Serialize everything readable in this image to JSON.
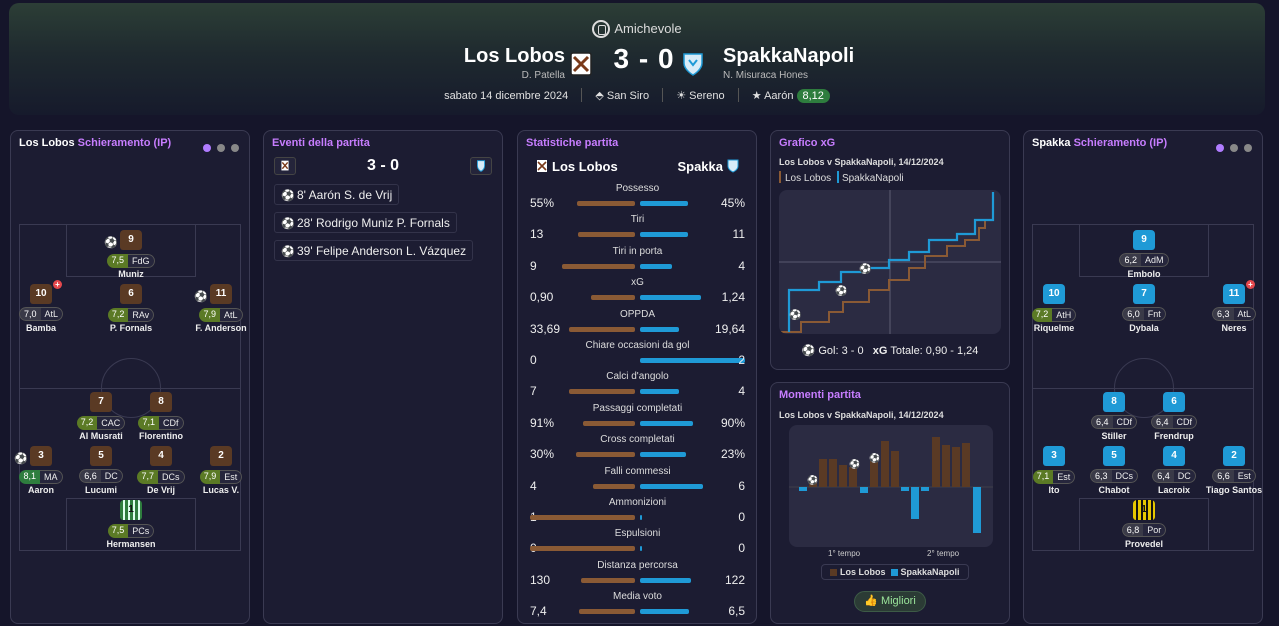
{
  "header": {
    "competition": "Amichevole",
    "home_team": "Los Lobos",
    "home_manager": "D. Patella",
    "away_team": "SpakkaNapoli",
    "away_manager": "N. Misuraca Hones",
    "score": "3 - 0",
    "date": "sabato 14 dicembre 2024",
    "stadium": "San Siro",
    "weather": "Sereno",
    "mvp_name": "Aarón",
    "mvp_rating": "8,12"
  },
  "home_lineup": {
    "title_team": "Los Lobos",
    "title_suffix": "Schieramento (IP)",
    "players": [
      {
        "num": "9",
        "rating": "7,5",
        "pos": "FdG",
        "name": "Muniz",
        "event": "⚽"
      },
      {
        "num": "10",
        "rating": "7,0",
        "pos": "AtL",
        "name": "Bamba"
      },
      {
        "num": "6",
        "rating": "7,2",
        "pos": "RAv",
        "name": "P. Fornals"
      },
      {
        "num": "11",
        "rating": "7,9",
        "pos": "AtL",
        "name": "F. Anderson",
        "event": "⚽"
      },
      {
        "num": "7",
        "rating": "7,2",
        "pos": "CAC",
        "name": "Al Musrati"
      },
      {
        "num": "8",
        "rating": "7,1",
        "pos": "CDf",
        "name": "Florentino"
      },
      {
        "num": "3",
        "rating": "8,1",
        "pos": "MA",
        "name": "Aaron",
        "event": "⚽"
      },
      {
        "num": "5",
        "rating": "6,6",
        "pos": "DC",
        "name": "Lucumi"
      },
      {
        "num": "4",
        "rating": "7,7",
        "pos": "DCs",
        "name": "De Vrij"
      },
      {
        "num": "2",
        "rating": "7,9",
        "pos": "Est",
        "name": "Lucas V."
      },
      {
        "num": "1",
        "rating": "7,5",
        "pos": "PCs",
        "name": "Hermansen"
      }
    ]
  },
  "events": {
    "title": "Eventi della partita",
    "score": "3 - 0",
    "items": [
      "8' Aarón S. de Vrij",
      "28' Rodrigo Muniz P. Fornals",
      "39' Felipe Anderson L. Vázquez"
    ]
  },
  "stats": {
    "title": "Statistiche partita",
    "home": "Los Lobos",
    "away": "Spakka",
    "rows": [
      {
        "label": "Possesso",
        "home": "55%",
        "away": "45%",
        "hv": 55,
        "av": 45
      },
      {
        "label": "Tiri",
        "home": "13",
        "away": "11",
        "hv": 13,
        "av": 11
      },
      {
        "label": "Tiri in porta",
        "home": "9",
        "away": "4",
        "hv": 9,
        "av": 4
      },
      {
        "label": "xG",
        "home": "0,90",
        "away": "1,24",
        "hv": 0.9,
        "av": 1.24
      },
      {
        "label": "OPPDA",
        "home": "33,69",
        "away": "19,64",
        "hv": 33.69,
        "av": 19.64
      },
      {
        "label": "Chiare occasioni da gol",
        "home": "0",
        "away": "2",
        "hv": 0,
        "av": 2
      },
      {
        "label": "Calci d'angolo",
        "home": "7",
        "away": "4",
        "hv": 7,
        "av": 4
      },
      {
        "label": "Passaggi completati",
        "home": "91%",
        "away": "90%",
        "hv": 91,
        "av": 90
      },
      {
        "label": "Cross completati",
        "home": "30%",
        "away": "23%",
        "hv": 30,
        "av": 23
      },
      {
        "label": "Falli commessi",
        "home": "4",
        "away": "6",
        "hv": 4,
        "av": 6
      },
      {
        "label": "Ammonizioni",
        "home": "1",
        "away": "0",
        "hv": 1,
        "av": 0
      },
      {
        "label": "Espulsioni",
        "home": "0",
        "away": "0",
        "hv": 0,
        "av": 0
      },
      {
        "label": "Distanza percorsa",
        "home": "130",
        "away": "122",
        "hv": 130,
        "av": 122
      },
      {
        "label": "Media voto",
        "home": "7,4",
        "away": "6,5",
        "hv": 7.4,
        "av": 6.5
      }
    ]
  },
  "xg_chart": {
    "title": "Grafico xG",
    "subtitle": "Los Lobos v SpakkaNapoli, 14/12/2024",
    "legend_home": "Los Lobos",
    "legend_away": "SpakkaNapoli",
    "goals_label": "Gol: 3 - 0",
    "xg_label": "xG",
    "xg_total": "Totale: 0,90  -  1,24"
  },
  "moments": {
    "title": "Momenti partita",
    "subtitle": "Los Lobos v SpakkaNapoli, 14/12/2024",
    "first_half": "1° tempo",
    "second_half": "2° tempo",
    "legend_home": "Los Lobos",
    "legend_away": "SpakkaNapoli",
    "button": "Migliori"
  },
  "away_lineup": {
    "title_team": "Spakka",
    "title_suffix": "Schieramento (IP)",
    "players": [
      {
        "num": "9",
        "rating": "6,2",
        "pos": "AdM",
        "name": "Embolo"
      },
      {
        "num": "10",
        "rating": "7,2",
        "pos": "AtH",
        "name": "Riquelme"
      },
      {
        "num": "7",
        "rating": "6,0",
        "pos": "Fnt",
        "name": "Dybala"
      },
      {
        "num": "11",
        "rating": "6,3",
        "pos": "AtL",
        "name": "Neres"
      },
      {
        "num": "8",
        "rating": "6,4",
        "pos": "CDf",
        "name": "Stiller"
      },
      {
        "num": "6",
        "rating": "6,4",
        "pos": "CDf",
        "name": "Frendrup"
      },
      {
        "num": "3",
        "rating": "7,1",
        "pos": "Est",
        "name": "Ito"
      },
      {
        "num": "5",
        "rating": "6,3",
        "pos": "DCs",
        "name": "Chabot"
      },
      {
        "num": "4",
        "rating": "6,4",
        "pos": "DC",
        "name": "Lacroix"
      },
      {
        "num": "2",
        "rating": "6,6",
        "pos": "Est",
        "name": "Tiago Santos"
      },
      {
        "num": "1",
        "rating": "6,8",
        "pos": "Por",
        "name": "Provedel"
      }
    ]
  }
}
